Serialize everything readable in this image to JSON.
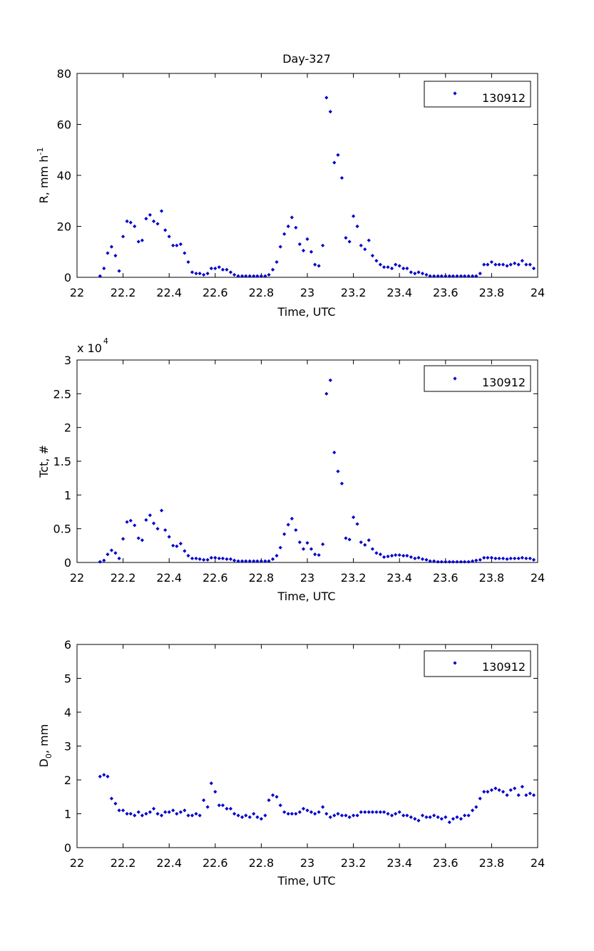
{
  "chart_data": [
    {
      "type": "scatter",
      "title": "Day-327",
      "xlabel": "Time, UTC",
      "ylabel": "R, mm h",
      "ylabel_sup": "-1",
      "xlim": [
        22,
        24
      ],
      "ylim": [
        0,
        80
      ],
      "x_ticks": [
        22,
        22.2,
        22.4,
        22.6,
        22.8,
        23,
        23.2,
        23.4,
        23.6,
        23.8,
        24
      ],
      "y_ticks": [
        0,
        20,
        40,
        60,
        80
      ],
      "legend_position": "top-right",
      "series": [
        {
          "name": "130912",
          "x": [
            22.1,
            22.117,
            22.133,
            22.15,
            22.167,
            22.183,
            22.2,
            22.217,
            22.233,
            22.25,
            22.267,
            22.283,
            22.3,
            22.317,
            22.333,
            22.35,
            22.367,
            22.383,
            22.4,
            22.417,
            22.433,
            22.45,
            22.467,
            22.483,
            22.5,
            22.517,
            22.533,
            22.55,
            22.567,
            22.583,
            22.6,
            22.617,
            22.633,
            22.65,
            22.667,
            22.683,
            22.7,
            22.717,
            22.733,
            22.75,
            22.767,
            22.783,
            22.8,
            22.817,
            22.833,
            22.85,
            22.867,
            22.883,
            22.9,
            22.917,
            22.933,
            22.95,
            22.967,
            22.983,
            23,
            23.017,
            23.033,
            23.05,
            23.067,
            23.083,
            23.1,
            23.117,
            23.133,
            23.15,
            23.167,
            23.183,
            23.2,
            23.217,
            23.233,
            23.25,
            23.267,
            23.283,
            23.3,
            23.317,
            23.333,
            23.35,
            23.367,
            23.383,
            23.4,
            23.417,
            23.433,
            23.45,
            23.467,
            23.483,
            23.5,
            23.517,
            23.533,
            23.55,
            23.567,
            23.583,
            23.6,
            23.617,
            23.633,
            23.65,
            23.667,
            23.683,
            23.7,
            23.717,
            23.733,
            23.75,
            23.767,
            23.783,
            23.8,
            23.817,
            23.833,
            23.85,
            23.867,
            23.883,
            23.9,
            23.917,
            23.933,
            23.95,
            23.967,
            23.983
          ],
          "values": [
            0.5,
            3.5,
            9.5,
            12,
            8.5,
            2.5,
            16,
            22,
            21.5,
            20,
            14,
            14.5,
            23,
            24.5,
            22,
            21,
            26,
            18.5,
            16,
            12.5,
            12.5,
            13,
            9.5,
            6,
            2,
            1.5,
            1.5,
            1,
            1.5,
            3.5,
            3.5,
            4,
            3,
            3,
            2,
            1,
            0.5,
            0.5,
            0.5,
            0.5,
            0.5,
            0.5,
            0.5,
            0.5,
            1,
            3,
            6,
            12,
            17,
            20,
            23.5,
            19.5,
            13,
            10.5,
            15,
            10,
            5,
            4.5,
            12.5,
            70.5,
            65,
            45,
            48,
            39,
            15.5,
            14,
            24,
            20,
            12.5,
            11,
            14.5,
            8.5,
            6.5,
            5,
            4,
            4,
            3.5,
            5,
            4.5,
            3.5,
            3.5,
            2,
            1.5,
            2,
            1.5,
            1,
            0.5,
            0.5,
            0.5,
            0.5,
            0.5,
            0.5,
            0.5,
            0.5,
            0.5,
            0.5,
            0.5,
            0.5,
            0.5,
            1.5,
            5,
            5,
            6,
            5,
            5,
            5,
            4.5,
            5,
            5.5,
            5,
            6.5,
            5,
            5,
            3.5
          ]
        }
      ]
    },
    {
      "type": "scatter",
      "title": "",
      "xlabel": "Time, UTC",
      "ylabel": "Tct, #",
      "y_multiplier": "x 10",
      "y_multiplier_exp": "4",
      "xlim": [
        22,
        24
      ],
      "ylim": [
        0,
        3
      ],
      "x_ticks": [
        22,
        22.2,
        22.4,
        22.6,
        22.8,
        23,
        23.2,
        23.4,
        23.6,
        23.8,
        24
      ],
      "y_ticks": [
        0,
        0.5,
        1,
        1.5,
        2,
        2.5,
        3
      ],
      "legend_position": "top-right",
      "series": [
        {
          "name": "130912",
          "x": [
            22.1,
            22.117,
            22.133,
            22.15,
            22.167,
            22.183,
            22.2,
            22.217,
            22.233,
            22.25,
            22.267,
            22.283,
            22.3,
            22.317,
            22.333,
            22.35,
            22.367,
            22.383,
            22.4,
            22.417,
            22.433,
            22.45,
            22.467,
            22.483,
            22.5,
            22.517,
            22.533,
            22.55,
            22.567,
            22.583,
            22.6,
            22.617,
            22.633,
            22.65,
            22.667,
            22.683,
            22.7,
            22.717,
            22.733,
            22.75,
            22.767,
            22.783,
            22.8,
            22.817,
            22.833,
            22.85,
            22.867,
            22.883,
            22.9,
            22.917,
            22.933,
            22.95,
            22.967,
            22.983,
            23,
            23.017,
            23.033,
            23.05,
            23.067,
            23.083,
            23.1,
            23.117,
            23.133,
            23.15,
            23.167,
            23.183,
            23.2,
            23.217,
            23.233,
            23.25,
            23.267,
            23.283,
            23.3,
            23.317,
            23.333,
            23.35,
            23.367,
            23.383,
            23.4,
            23.417,
            23.433,
            23.45,
            23.467,
            23.483,
            23.5,
            23.517,
            23.533,
            23.55,
            23.567,
            23.583,
            23.6,
            23.617,
            23.633,
            23.65,
            23.667,
            23.683,
            23.7,
            23.717,
            23.733,
            23.75,
            23.767,
            23.783,
            23.8,
            23.817,
            23.833,
            23.85,
            23.867,
            23.883,
            23.9,
            23.917,
            23.933,
            23.95,
            23.967,
            23.983
          ],
          "values": [
            0.01,
            0.03,
            0.12,
            0.18,
            0.14,
            0.06,
            0.35,
            0.6,
            0.62,
            0.55,
            0.36,
            0.33,
            0.63,
            0.7,
            0.58,
            0.5,
            0.77,
            0.48,
            0.38,
            0.25,
            0.24,
            0.28,
            0.17,
            0.1,
            0.06,
            0.06,
            0.05,
            0.04,
            0.04,
            0.07,
            0.07,
            0.06,
            0.06,
            0.05,
            0.05,
            0.03,
            0.02,
            0.02,
            0.02,
            0.02,
            0.02,
            0.02,
            0.02,
            0.02,
            0.02,
            0.05,
            0.1,
            0.22,
            0.42,
            0.56,
            0.65,
            0.48,
            0.3,
            0.2,
            0.29,
            0.2,
            0.12,
            0.11,
            0.27,
            2.5,
            2.7,
            1.63,
            1.35,
            1.17,
            0.36,
            0.34,
            0.67,
            0.57,
            0.3,
            0.26,
            0.33,
            0.2,
            0.14,
            0.12,
            0.08,
            0.09,
            0.1,
            0.11,
            0.11,
            0.1,
            0.1,
            0.08,
            0.06,
            0.07,
            0.05,
            0.04,
            0.02,
            0.02,
            0.01,
            0.01,
            0.01,
            0.01,
            0.01,
            0.01,
            0.01,
            0.01,
            0.01,
            0.02,
            0.03,
            0.04,
            0.07,
            0.07,
            0.07,
            0.06,
            0.06,
            0.06,
            0.05,
            0.06,
            0.06,
            0.06,
            0.07,
            0.06,
            0.06,
            0.04
          ]
        }
      ]
    },
    {
      "type": "scatter",
      "title": "",
      "xlabel": "Time, UTC",
      "ylabel": "D , mm",
      "ylabel_sub": "0",
      "xlim": [
        22,
        24
      ],
      "ylim": [
        0,
        6
      ],
      "x_ticks": [
        22,
        22.2,
        22.4,
        22.6,
        22.8,
        23,
        23.2,
        23.4,
        23.6,
        23.8,
        24
      ],
      "y_ticks": [
        0,
        1,
        2,
        3,
        4,
        5,
        6
      ],
      "legend_position": "top-right",
      "series": [
        {
          "name": "130912",
          "x": [
            22.1,
            22.117,
            22.133,
            22.15,
            22.167,
            22.183,
            22.2,
            22.217,
            22.233,
            22.25,
            22.267,
            22.283,
            22.3,
            22.317,
            22.333,
            22.35,
            22.367,
            22.383,
            22.4,
            22.417,
            22.433,
            22.45,
            22.467,
            22.483,
            22.5,
            22.517,
            22.533,
            22.55,
            22.567,
            22.583,
            22.6,
            22.617,
            22.633,
            22.65,
            22.667,
            22.683,
            22.7,
            22.717,
            22.733,
            22.75,
            22.767,
            22.783,
            22.8,
            22.817,
            22.833,
            22.85,
            22.867,
            22.883,
            22.9,
            22.917,
            22.933,
            22.95,
            22.967,
            22.983,
            23,
            23.017,
            23.033,
            23.05,
            23.067,
            23.083,
            23.1,
            23.117,
            23.133,
            23.15,
            23.167,
            23.183,
            23.2,
            23.217,
            23.233,
            23.25,
            23.267,
            23.283,
            23.3,
            23.317,
            23.333,
            23.35,
            23.367,
            23.383,
            23.4,
            23.417,
            23.433,
            23.45,
            23.467,
            23.483,
            23.5,
            23.517,
            23.533,
            23.55,
            23.567,
            23.583,
            23.6,
            23.617,
            23.633,
            23.65,
            23.667,
            23.683,
            23.7,
            23.717,
            23.733,
            23.75,
            23.767,
            23.783,
            23.8,
            23.817,
            23.833,
            23.85,
            23.867,
            23.883,
            23.9,
            23.917,
            23.933,
            23.95,
            23.967,
            23.983
          ],
          "values": [
            2.1,
            2.15,
            2.1,
            1.45,
            1.3,
            1.1,
            1.1,
            1.0,
            1.0,
            0.95,
            1.05,
            0.95,
            1.0,
            1.05,
            1.15,
            1.0,
            0.95,
            1.05,
            1.05,
            1.1,
            1.0,
            1.05,
            1.1,
            0.95,
            0.95,
            1.0,
            0.95,
            1.4,
            1.2,
            1.9,
            1.65,
            1.25,
            1.25,
            1.15,
            1.15,
            1.0,
            0.95,
            0.9,
            0.95,
            0.9,
            1.0,
            0.9,
            0.85,
            0.95,
            1.4,
            1.55,
            1.5,
            1.25,
            1.05,
            1.0,
            1.0,
            1.0,
            1.05,
            1.15,
            1.1,
            1.05,
            1.0,
            1.05,
            1.2,
            1.0,
            0.9,
            0.95,
            1.0,
            0.95,
            0.95,
            0.9,
            0.95,
            0.95,
            1.05,
            1.05,
            1.05,
            1.05,
            1.05,
            1.05,
            1.05,
            1.0,
            0.95,
            1.0,
            1.05,
            0.95,
            0.95,
            0.9,
            0.85,
            0.8,
            0.95,
            0.9,
            0.9,
            0.95,
            0.9,
            0.85,
            0.9,
            0.75,
            0.85,
            0.9,
            0.85,
            0.95,
            0.95,
            1.1,
            1.2,
            1.45,
            1.65,
            1.65,
            1.7,
            1.75,
            1.7,
            1.65,
            1.55,
            1.7,
            1.75,
            1.55,
            1.8,
            1.55,
            1.6,
            1.55
          ]
        }
      ]
    }
  ],
  "colors": {
    "marker": "#0000cc",
    "axis": "#000000",
    "background": "#ffffff"
  }
}
